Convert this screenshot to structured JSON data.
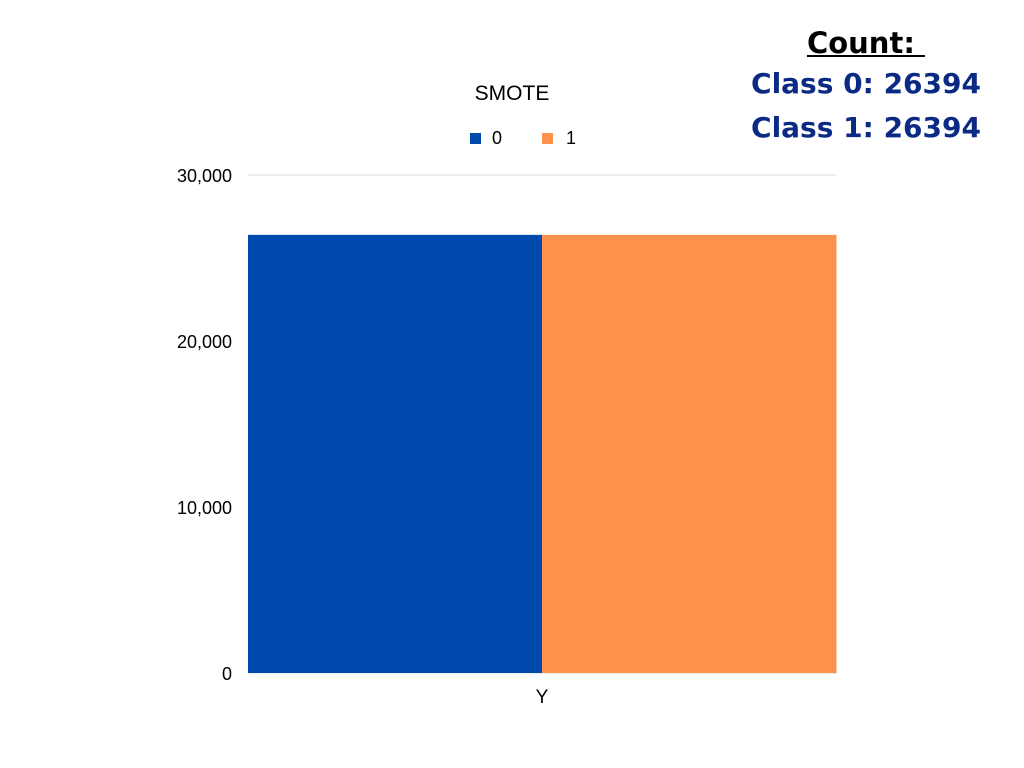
{
  "count_panel": {
    "title": "Count:",
    "lines": [
      "Class 0: 26394",
      "Class 1: 26394"
    ]
  },
  "chart_data": {
    "type": "bar",
    "title": "SMOTE",
    "categories": [
      "Y"
    ],
    "series": [
      {
        "name": "0",
        "values": [
          26394
        ],
        "color": "#004aad"
      },
      {
        "name": "1",
        "values": [
          26394
        ],
        "color": "#ff914d"
      }
    ],
    "ylim": [
      0,
      30000
    ],
    "yticks": [
      "0",
      "10,000",
      "20,000",
      "30,000"
    ],
    "ytick_values": [
      0,
      10000,
      20000,
      30000
    ],
    "grid": true,
    "legend_position": "top"
  }
}
